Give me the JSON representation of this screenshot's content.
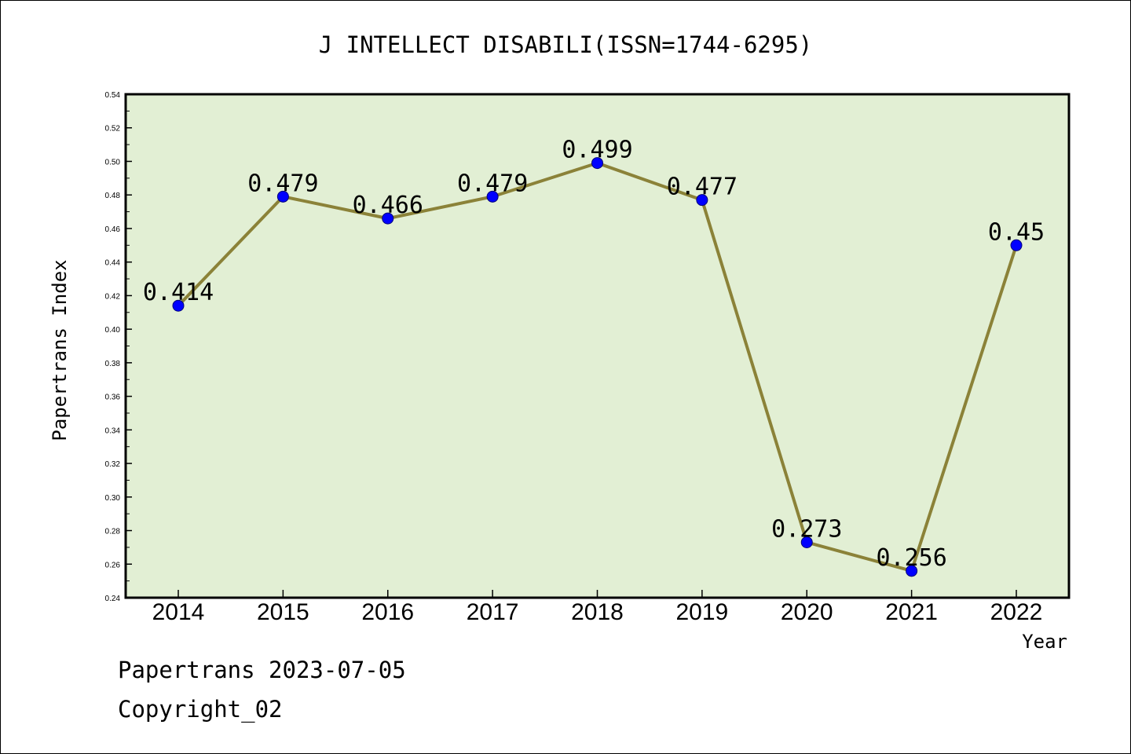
{
  "chart_data": {
    "type": "line",
    "title": "J INTELLECT DISABILI(ISSN=1744-6295)",
    "xlabel": "Year",
    "ylabel": "Papertrans Index",
    "categories": [
      "2014",
      "2015",
      "2016",
      "2017",
      "2018",
      "2019",
      "2020",
      "2021",
      "2022"
    ],
    "series": [
      {
        "values": [
          0.414,
          0.479,
          0.466,
          0.479,
          0.499,
          0.477,
          0.273,
          0.256,
          0.45
        ],
        "data_labels": [
          "0.414",
          "0.479",
          "0.466",
          "0.479",
          "0.499",
          "0.477",
          "0.273",
          "0.256",
          "0.45"
        ]
      }
    ],
    "ylim": [
      0.24,
      0.54
    ],
    "y_ticks": [
      "0.24",
      "0.26",
      "0.28",
      "0.30",
      "0.32",
      "0.34",
      "0.36",
      "0.38",
      "0.40",
      "0.42",
      "0.44",
      "0.46",
      "0.48",
      "0.50",
      "0.52",
      "0.54"
    ],
    "grid": false,
    "legend": "none",
    "colors": {
      "plot_background": "#e2efd4",
      "line": "#8b8238",
      "marker_fill": "#0000ff",
      "marker_edge": "#00007a"
    }
  },
  "footer": {
    "line1": "Papertrans 2023-07-05",
    "line2": "Copyright_02"
  }
}
